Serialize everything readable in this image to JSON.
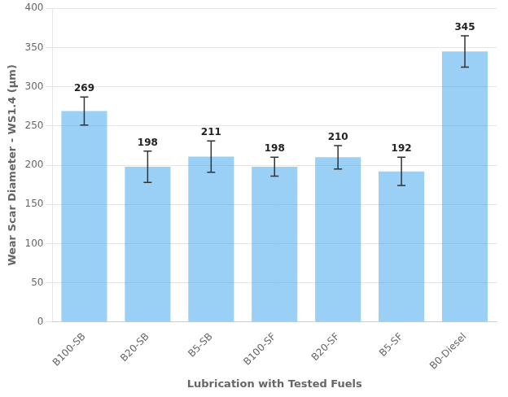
{
  "chart_data": {
    "type": "bar",
    "categories": [
      "B100-SB",
      "B20-SB",
      "B5-SB",
      "B100-SF",
      "B20-SF",
      "B5-SF",
      "B0-Diesel"
    ],
    "values": [
      269,
      198,
      211,
      198,
      210,
      192,
      345
    ],
    "errors": [
      18,
      20,
      20,
      12,
      15,
      18,
      20
    ],
    "xlabel": "Lubrication with Tested Fuels",
    "ylabel": "Wear Scar Diameter - WS1.4 (μm)",
    "ylim": [
      0,
      400
    ],
    "yticks": [
      0,
      50,
      100,
      150,
      200,
      250,
      300,
      350,
      400
    ],
    "grid": true,
    "data_labels": true
  }
}
